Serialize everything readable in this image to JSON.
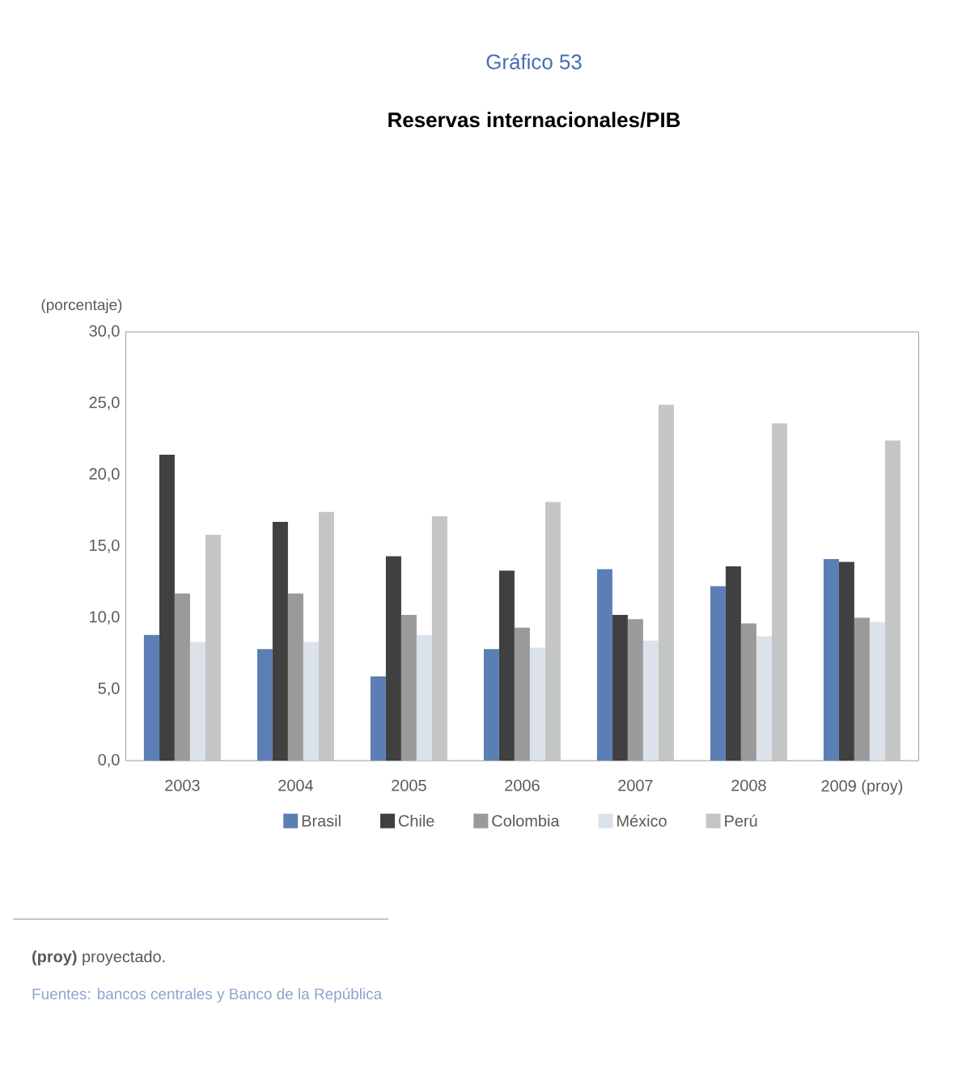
{
  "chart_data": {
    "type": "bar",
    "title": "Gráfico 53",
    "subtitle": "Reservas internacionales/PIB",
    "ylabel": "(porcentaje)",
    "categories": [
      "2003",
      "2004",
      "2005",
      "2006",
      "2007",
      "2008",
      "2009 (proy)"
    ],
    "series": [
      {
        "name": "Brasil",
        "color": "#5b7fb5",
        "values": [
          8.8,
          7.8,
          5.9,
          7.8,
          13.4,
          12.2,
          14.1
        ]
      },
      {
        "name": "Chile",
        "color": "#404040",
        "values": [
          21.4,
          16.7,
          14.3,
          13.3,
          10.2,
          13.6,
          13.9
        ]
      },
      {
        "name": "Colombia",
        "color": "#9a9a9a",
        "values": [
          11.7,
          11.7,
          10.2,
          9.3,
          9.9,
          9.6,
          10.0
        ]
      },
      {
        "name": "México",
        "color": "#dce2ea",
        "values": [
          8.3,
          8.3,
          8.8,
          7.9,
          8.4,
          8.7,
          9.7
        ]
      },
      {
        "name": "Perú",
        "color": "#c4c6c6",
        "values": [
          15.8,
          17.4,
          17.1,
          18.1,
          24.9,
          23.6,
          22.4
        ]
      }
    ],
    "ylim": [
      0,
      30
    ],
    "yticks": [
      {
        "value": 0,
        "label": "0,0"
      },
      {
        "value": 5,
        "label": "5,0"
      },
      {
        "value": 10,
        "label": "10,0"
      },
      {
        "value": 15,
        "label": "15,0"
      },
      {
        "value": 20,
        "label": "20,0"
      },
      {
        "value": 25,
        "label": "25,0"
      },
      {
        "value": 30,
        "label": "30,0"
      }
    ],
    "legend": "bottom",
    "annotations": [
      "**(proy)** proyectado.",
      "Fuentes: bancos centrales y Banco de la República"
    ]
  }
}
